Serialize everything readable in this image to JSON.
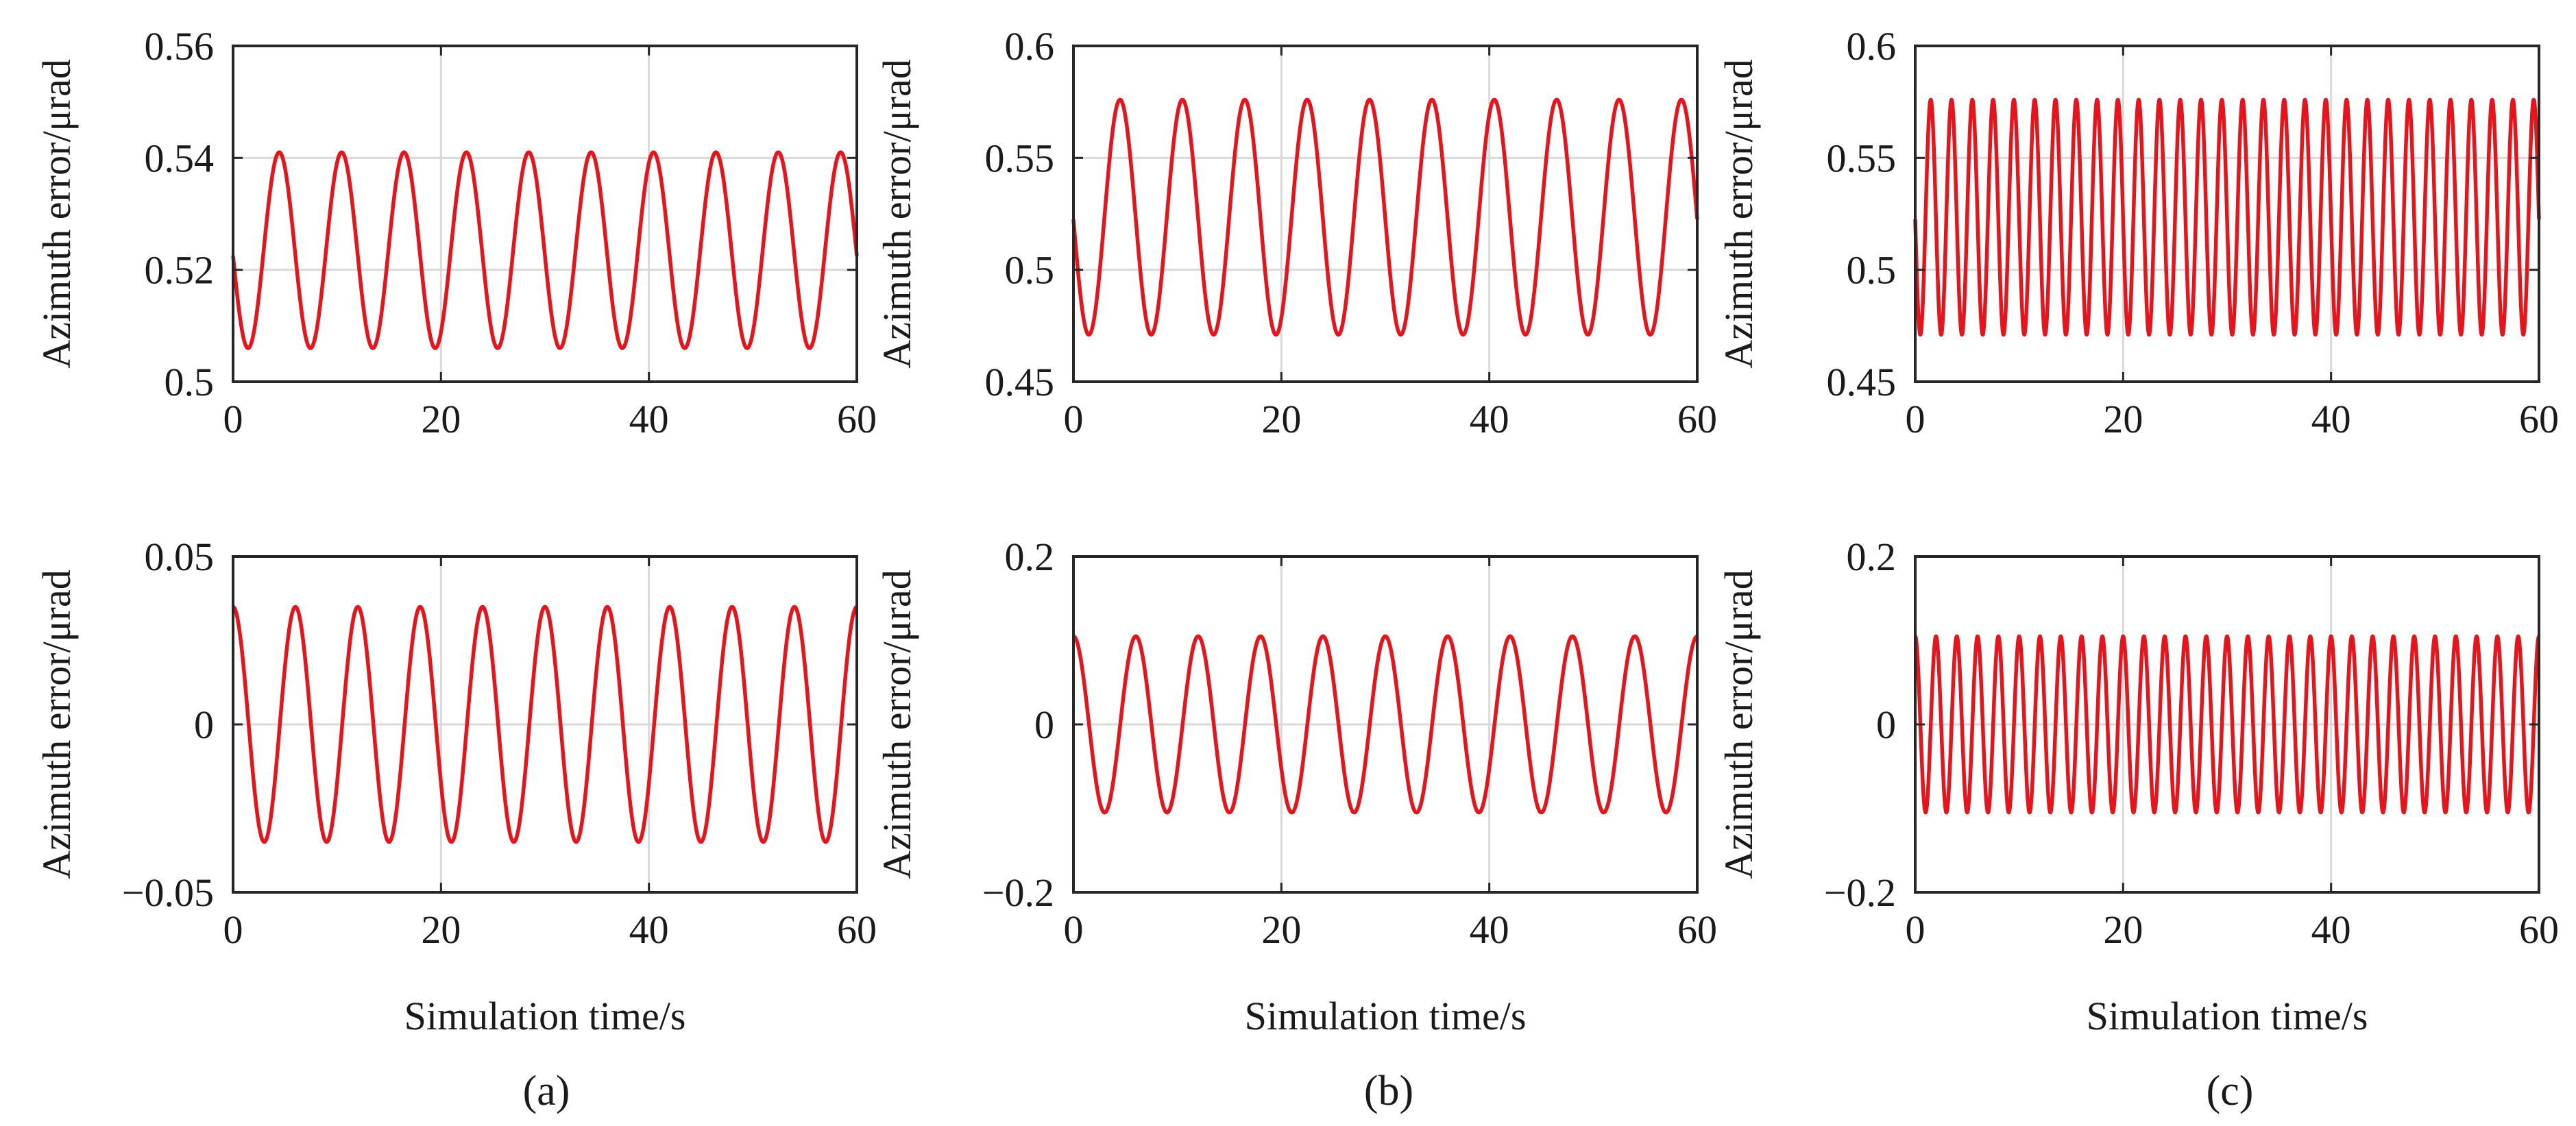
{
  "figure": {
    "panel_labels": [
      "(a)",
      "(b)",
      "(c)"
    ],
    "line_color": "#e8141c",
    "grid_color": "#d9d9d9",
    "axis_color": "#262626"
  },
  "chart_data": [
    {
      "id": "a-top",
      "type": "line",
      "panel": "(a)",
      "row": "top",
      "title": "",
      "xlabel": "",
      "ylabel": "Azimuth error/μrad",
      "xlim": [
        0,
        60
      ],
      "ylim": [
        0.5,
        0.56
      ],
      "xticks": [
        0,
        20,
        40,
        60
      ],
      "yticks": [
        0.5,
        0.52,
        0.54,
        0.56
      ],
      "ytick_labels": [
        "0.5",
        "0.52",
        "0.54",
        "0.56"
      ],
      "grid": true,
      "series": [
        {
          "name": "azimuth error",
          "function": "sine",
          "offset": 0.5235,
          "amplitude": 0.0175,
          "period_s": 6.0,
          "value_at_t0": 0.5225,
          "initial_direction": "down",
          "x_range": [
            0,
            60
          ]
        }
      ]
    },
    {
      "id": "b-top",
      "type": "line",
      "panel": "(b)",
      "row": "top",
      "title": "",
      "xlabel": "",
      "ylabel": "Azimuth error/μrad",
      "xlim": [
        0,
        60
      ],
      "ylim": [
        0.45,
        0.6
      ],
      "xticks": [
        0,
        20,
        40,
        60
      ],
      "yticks": [
        0.45,
        0.5,
        0.55,
        0.6
      ],
      "ytick_labels": [
        "0.45",
        "0.5",
        "0.55",
        "0.6"
      ],
      "grid": true,
      "series": [
        {
          "name": "azimuth error",
          "function": "sine",
          "offset": 0.5235,
          "amplitude": 0.0525,
          "period_s": 6.0,
          "value_at_t0": 0.5225,
          "initial_direction": "down",
          "x_range": [
            0,
            60
          ]
        }
      ]
    },
    {
      "id": "c-top",
      "type": "line",
      "panel": "(c)",
      "row": "top",
      "title": "",
      "xlabel": "",
      "ylabel": "Azimuth error/μrad",
      "xlim": [
        0,
        60
      ],
      "ylim": [
        0.45,
        0.6
      ],
      "xticks": [
        0,
        20,
        40,
        60
      ],
      "yticks": [
        0.45,
        0.5,
        0.55,
        0.6
      ],
      "ytick_labels": [
        "0.45",
        "0.5",
        "0.55",
        "0.6"
      ],
      "grid": true,
      "series": [
        {
          "name": "azimuth error",
          "function": "sine",
          "offset": 0.5235,
          "amplitude": 0.0525,
          "period_s": 2.0,
          "value_at_t0": 0.5225,
          "initial_direction": "down",
          "x_range": [
            0,
            60
          ]
        }
      ]
    },
    {
      "id": "a-bottom",
      "type": "line",
      "panel": "(a)",
      "row": "bottom",
      "title": "",
      "xlabel": "Simulation time/s",
      "ylabel": "Azimuth error/μrad",
      "xlim": [
        0,
        60
      ],
      "ylim": [
        -0.05,
        0.05
      ],
      "xticks": [
        0,
        20,
        40,
        60
      ],
      "yticks": [
        -0.05,
        0,
        0.05
      ],
      "ytick_labels": [
        "−0.05",
        "0",
        "0.05"
      ],
      "grid": true,
      "series": [
        {
          "name": "azimuth error",
          "function": "cosine",
          "offset": 0,
          "amplitude": 0.035,
          "period_s": 6.0,
          "value_at_t0": 0.035,
          "x_range": [
            0,
            60
          ]
        }
      ]
    },
    {
      "id": "b-bottom",
      "type": "line",
      "panel": "(b)",
      "row": "bottom",
      "title": "",
      "xlabel": "Simulation time/s",
      "ylabel": "Azimuth error/μrad",
      "xlim": [
        0,
        60
      ],
      "ylim": [
        -0.2,
        0.2
      ],
      "xticks": [
        0,
        20,
        40,
        60
      ],
      "yticks": [
        -0.2,
        0,
        0.2
      ],
      "ytick_labels": [
        "−0.2",
        "0",
        "0.2"
      ],
      "grid": true,
      "series": [
        {
          "name": "azimuth error",
          "function": "cosine",
          "offset": 0,
          "amplitude": 0.105,
          "period_s": 6.0,
          "value_at_t0": 0.105,
          "x_range": [
            0,
            60
          ]
        }
      ]
    },
    {
      "id": "c-bottom",
      "type": "line",
      "panel": "(c)",
      "row": "bottom",
      "title": "",
      "xlabel": "Simulation time/s",
      "ylabel": "Azimuth error/μrad",
      "xlim": [
        0,
        60
      ],
      "ylim": [
        -0.2,
        0.2
      ],
      "xticks": [
        0,
        20,
        40,
        60
      ],
      "yticks": [
        -0.2,
        0,
        0.2
      ],
      "ytick_labels": [
        "−0.2",
        "0",
        "0.2"
      ],
      "grid": true,
      "series": [
        {
          "name": "azimuth error",
          "function": "cosine",
          "offset": 0,
          "amplitude": 0.105,
          "period_s": 2.0,
          "value_at_t0": 0.105,
          "x_range": [
            0,
            60
          ]
        }
      ]
    }
  ]
}
